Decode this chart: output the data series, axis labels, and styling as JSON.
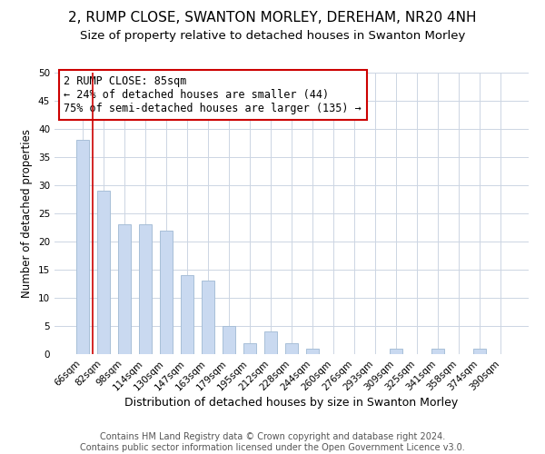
{
  "title": "2, RUMP CLOSE, SWANTON MORLEY, DEREHAM, NR20 4NH",
  "subtitle": "Size of property relative to detached houses in Swanton Morley",
  "xlabel": "Distribution of detached houses by size in Swanton Morley",
  "ylabel": "Number of detached properties",
  "bin_labels": [
    "66sqm",
    "82sqm",
    "98sqm",
    "114sqm",
    "130sqm",
    "147sqm",
    "163sqm",
    "179sqm",
    "195sqm",
    "212sqm",
    "228sqm",
    "244sqm",
    "260sqm",
    "276sqm",
    "293sqm",
    "309sqm",
    "325sqm",
    "341sqm",
    "358sqm",
    "374sqm",
    "390sqm"
  ],
  "bar_heights": [
    38,
    29,
    23,
    23,
    22,
    14,
    13,
    5,
    2,
    4,
    2,
    1,
    0,
    0,
    0,
    1,
    0,
    1,
    0,
    1,
    0
  ],
  "bar_color": "#c9d9f0",
  "bar_edge_color": "#a8bfd8",
  "grid_color": "#ccd5e3",
  "vline_color": "#cc0000",
  "annotation_text": "2 RUMP CLOSE: 85sqm\n← 24% of detached houses are smaller (44)\n75% of semi-detached houses are larger (135) →",
  "annotation_box_color": "#ffffff",
  "annotation_box_edge": "#cc0000",
  "ylim": [
    0,
    50
  ],
  "yticks": [
    0,
    5,
    10,
    15,
    20,
    25,
    30,
    35,
    40,
    45,
    50
  ],
  "footer_line1": "Contains HM Land Registry data © Crown copyright and database right 2024.",
  "footer_line2": "Contains public sector information licensed under the Open Government Licence v3.0.",
  "title_fontsize": 11,
  "subtitle_fontsize": 9.5,
  "xlabel_fontsize": 9,
  "ylabel_fontsize": 8.5,
  "tick_fontsize": 7.5,
  "footer_fontsize": 7,
  "annotation_fontsize": 8.5
}
